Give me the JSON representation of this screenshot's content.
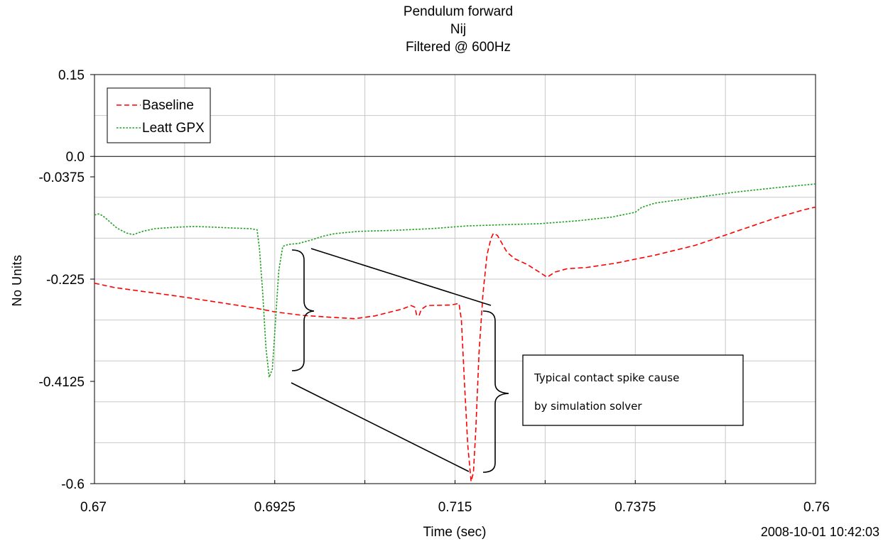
{
  "chart_data": {
    "type": "line",
    "title": "Pendulum forward",
    "subtitle": "Nij",
    "subtitle2": "Filtered @ 600Hz",
    "xlabel": "Time (sec)",
    "ylabel": "No Units",
    "xlim": [
      0.67,
      0.76
    ],
    "ylim": [
      -0.6,
      0.15
    ],
    "xticks": [
      0.67,
      0.6925,
      0.715,
      0.7375,
      0.76
    ],
    "xtick_labels": [
      "0.67",
      "0.6925",
      "0.715",
      "0.7375",
      "0.76"
    ],
    "yticks": [
      0.15,
      0.0,
      -0.0375,
      -0.225,
      -0.4125,
      -0.6
    ],
    "ytick_labels": [
      "0.15",
      "0.0",
      "-0.0375",
      "-0.225",
      "-0.4125",
      "-0.6"
    ],
    "grid": true,
    "legend_position": "top-left",
    "timestamp": "2008-10-01 10:42:03",
    "series": [
      {
        "name": "Baseline",
        "color": "#ff0000",
        "style": "dashed",
        "points": [
          [
            0.67,
            -0.2325
          ],
          [
            0.6725,
            -0.2405
          ],
          [
            0.676,
            -0.2475
          ],
          [
            0.68,
            -0.2555
          ],
          [
            0.685,
            -0.2665
          ],
          [
            0.69,
            -0.278
          ],
          [
            0.6925,
            -0.285
          ],
          [
            0.696,
            -0.2915
          ],
          [
            0.7,
            -0.2955
          ],
          [
            0.7025,
            -0.2975
          ],
          [
            0.705,
            -0.2925
          ],
          [
            0.7085,
            -0.2795
          ],
          [
            0.7095,
            -0.2735
          ],
          [
            0.71,
            -0.2765
          ],
          [
            0.7102,
            -0.2905
          ],
          [
            0.7105,
            -0.2925
          ],
          [
            0.7108,
            -0.2805
          ],
          [
            0.7115,
            -0.2735
          ],
          [
            0.7145,
            -0.2725
          ],
          [
            0.7155,
            -0.2695
          ],
          [
            0.7158,
            -0.3
          ],
          [
            0.7162,
            -0.42
          ],
          [
            0.7166,
            -0.53
          ],
          [
            0.717,
            -0.596
          ],
          [
            0.7173,
            -0.58
          ],
          [
            0.7176,
            -0.5
          ],
          [
            0.718,
            -0.36
          ],
          [
            0.7185,
            -0.25
          ],
          [
            0.719,
            -0.18
          ],
          [
            0.7195,
            -0.15
          ],
          [
            0.7198,
            -0.141
          ],
          [
            0.7203,
            -0.145
          ],
          [
            0.7215,
            -0.176
          ],
          [
            0.7225,
            -0.188
          ],
          [
            0.724,
            -0.198
          ],
          [
            0.7255,
            -0.212
          ],
          [
            0.7265,
            -0.2215
          ],
          [
            0.7275,
            -0.212
          ],
          [
            0.729,
            -0.206
          ],
          [
            0.7315,
            -0.2035
          ],
          [
            0.735,
            -0.196
          ],
          [
            0.74,
            -0.181
          ],
          [
            0.745,
            -0.163
          ],
          [
            0.75,
            -0.138
          ],
          [
            0.755,
            -0.113
          ],
          [
            0.7585,
            -0.098
          ],
          [
            0.76,
            -0.093
          ]
        ]
      },
      {
        "name": "Leatt GPX",
        "color": "#1fa01f",
        "style": "dotted",
        "points": [
          [
            0.67,
            -0.1075
          ],
          [
            0.6705,
            -0.1055
          ],
          [
            0.671,
            -0.1085
          ],
          [
            0.6718,
            -0.1185
          ],
          [
            0.6728,
            -0.1315
          ],
          [
            0.674,
            -0.1405
          ],
          [
            0.6748,
            -0.1435
          ],
          [
            0.676,
            -0.1375
          ],
          [
            0.6775,
            -0.1325
          ],
          [
            0.68,
            -0.13
          ],
          [
            0.6825,
            -0.1285
          ],
          [
            0.6845,
            -0.1295
          ],
          [
            0.6875,
            -0.1315
          ],
          [
            0.6895,
            -0.1325
          ],
          [
            0.6903,
            -0.1345
          ],
          [
            0.6906,
            -0.17
          ],
          [
            0.691,
            -0.25
          ],
          [
            0.6914,
            -0.35
          ],
          [
            0.6918,
            -0.405
          ],
          [
            0.6922,
            -0.39
          ],
          [
            0.6926,
            -0.3
          ],
          [
            0.693,
            -0.21
          ],
          [
            0.6935,
            -0.165
          ],
          [
            0.6942,
            -0.1615
          ],
          [
            0.6955,
            -0.1595
          ],
          [
            0.697,
            -0.1535
          ],
          [
            0.6985,
            -0.1465
          ],
          [
            0.7,
            -0.1415
          ],
          [
            0.703,
            -0.1375
          ],
          [
            0.7075,
            -0.1355
          ],
          [
            0.712,
            -0.1325
          ],
          [
            0.7165,
            -0.1275
          ],
          [
            0.7205,
            -0.1255
          ],
          [
            0.7255,
            -0.1235
          ],
          [
            0.73,
            -0.1185
          ],
          [
            0.7345,
            -0.1115
          ],
          [
            0.7375,
            -0.1025
          ],
          [
            0.7383,
            -0.0935
          ],
          [
            0.74,
            -0.0855
          ],
          [
            0.745,
            -0.0755
          ],
          [
            0.75,
            -0.0655
          ],
          [
            0.755,
            -0.0575
          ],
          [
            0.76,
            -0.0505
          ]
        ]
      }
    ],
    "annotation": {
      "lines": [
        "Typical contact spike cause",
        "by simulation solver"
      ]
    }
  }
}
